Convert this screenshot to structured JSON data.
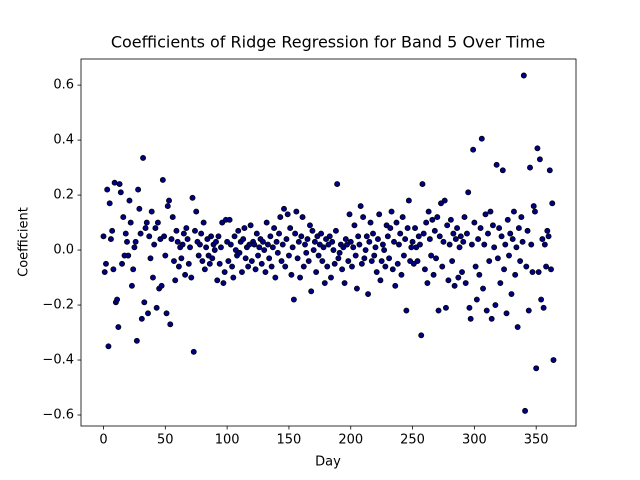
{
  "chart_data": {
    "type": "scatter",
    "title": "Coefficients of Ridge Regression for Band 5 Over Time",
    "x_label": "Day",
    "y_label": "Coefficient",
    "xlim": [
      -18.2,
      382.2
    ],
    "ylim": [
      -0.64,
      0.695
    ],
    "xticks": [
      0,
      50,
      100,
      150,
      200,
      250,
      300,
      350
    ],
    "yticks": [
      {
        "value": -0.6,
        "label": "−0.6"
      },
      {
        "value": -0.4,
        "label": "−0.4"
      },
      {
        "value": -0.2,
        "label": "−0.2"
      },
      {
        "value": 0,
        "label": "0.0"
      },
      0.2,
      0.4,
      0.6
    ],
    "color": "navy",
    "x": [
      0,
      1,
      2,
      3,
      4,
      5,
      6,
      7,
      8,
      9,
      10,
      11,
      12,
      13,
      14,
      15,
      16,
      17,
      18,
      19,
      20,
      21,
      22,
      23,
      24,
      25,
      26,
      27,
      28,
      29,
      30,
      31,
      32,
      33,
      34,
      35,
      36,
      37,
      38,
      39,
      40,
      41,
      42,
      43,
      44,
      45,
      46,
      47,
      48,
      49,
      50,
      51,
      52,
      53,
      54,
      55,
      56,
      57,
      58,
      59,
      60,
      61,
      62,
      63,
      64,
      65,
      66,
      67,
      68,
      69,
      70,
      71,
      72,
      73,
      74,
      75,
      76,
      77,
      78,
      79,
      80,
      81,
      82,
      83,
      84,
      85,
      86,
      87,
      88,
      89,
      90,
      91,
      92,
      93,
      94,
      95,
      96,
      97,
      98,
      99,
      100,
      101,
      102,
      103,
      104,
      105,
      106,
      107,
      108,
      109,
      110,
      111,
      112,
      113,
      114,
      115,
      116,
      117,
      118,
      119,
      120,
      121,
      122,
      123,
      124,
      125,
      126,
      127,
      128,
      129,
      130,
      131,
      132,
      133,
      134,
      135,
      136,
      137,
      138,
      139,
      140,
      141,
      142,
      143,
      144,
      145,
      146,
      147,
      148,
      149,
      150,
      151,
      152,
      153,
      154,
      155,
      156,
      157,
      158,
      159,
      160,
      161,
      162,
      163,
      164,
      165,
      166,
      167,
      168,
      169,
      170,
      171,
      172,
      173,
      174,
      175,
      176,
      177,
      178,
      179,
      180,
      181,
      182,
      183,
      184,
      185,
      186,
      187,
      188,
      189,
      190,
      191,
      192,
      193,
      194,
      195,
      196,
      197,
      198,
      199,
      200,
      201,
      202,
      203,
      204,
      205,
      206,
      207,
      208,
      209,
      210,
      211,
      212,
      213,
      214,
      215,
      216,
      217,
      218,
      219,
      220,
      221,
      222,
      223,
      224,
      225,
      226,
      227,
      228,
      229,
      230,
      231,
      232,
      233,
      234,
      235,
      236,
      237,
      238,
      239,
      240,
      241,
      242,
      243,
      244,
      245,
      246,
      247,
      248,
      249,
      250,
      251,
      252,
      253,
      254,
      255,
      256,
      257,
      258,
      259,
      260,
      261,
      262,
      263,
      264,
      265,
      266,
      267,
      268,
      269,
      270,
      271,
      272,
      273,
      274,
      275,
      276,
      277,
      278,
      279,
      280,
      281,
      282,
      283,
      284,
      285,
      286,
      287,
      288,
      289,
      290,
      291,
      292,
      293,
      294,
      295,
      296,
      297,
      298,
      299,
      300,
      301,
      302,
      303,
      304,
      305,
      306,
      307,
      308,
      309,
      310,
      311,
      312,
      313,
      314,
      315,
      316,
      317,
      318,
      319,
      320,
      321,
      322,
      323,
      324,
      325,
      326,
      327,
      328,
      329,
      330,
      331,
      332,
      333,
      334,
      335,
      336,
      337,
      338,
      339,
      340,
      341,
      342,
      343,
      344,
      345,
      346,
      347,
      348,
      349,
      350,
      351,
      352,
      353,
      354,
      355,
      356,
      357,
      358,
      359,
      360,
      361,
      362,
      363,
      364
    ],
    "values": [
      0.05,
      -0.08,
      -0.05,
      0.22,
      -0.35,
      0.17,
      0.04,
      0.07,
      -0.07,
      0.245,
      -0.19,
      -0.18,
      -0.28,
      0.24,
      0.21,
      -0.05,
      0.12,
      -0.02,
      0.06,
      0.03,
      -0.02,
      0.18,
      0.1,
      -0.13,
      -0.07,
      0.01,
      0.03,
      -0.33,
      0.22,
      0.15,
      0.06,
      -0.25,
      0.335,
      -0.19,
      0.08,
      0.1,
      -0.23,
      0.05,
      -0.03,
      0.14,
      -0.1,
      0.02,
      0.08,
      -0.21,
      0.1,
      -0.14,
      0.04,
      -0.13,
      0.255,
      0.05,
      -0.02,
      -0.23,
      0.16,
      0.18,
      -0.27,
      0.04,
      0.12,
      -0.04,
      -0.11,
      0.07,
      0.03,
      -0.06,
      0.01,
      -0.03,
      0.02,
      0.06,
      -0.09,
      0.08,
      0.04,
      -0.05,
      0.01,
      -0.1,
      0.19,
      -0.37,
      0.07,
      0.14,
      0.03,
      -0.02,
      0.02,
      0.06,
      -0.04,
      0.1,
      -0.07,
      0.01,
      0.04,
      -0.02,
      -0.05,
      0.05,
      -0.03,
      0.02,
      0.0,
      0.03,
      -0.11,
      0.05,
      -0.05,
      0.01,
      0.1,
      -0.12,
      -0.08,
      0.11,
      0.03,
      -0.04,
      0.11,
      0.02,
      -0.06,
      -0.1,
      0.05,
      0.0,
      -0.02,
      0.07,
      -0.01,
      0.03,
      -0.08,
      0.04,
      0.08,
      -0.03,
      0.01,
      -0.06,
      0.02,
      0.09,
      -0.04,
      0.03,
      0.02,
      -0.07,
      0.06,
      -0.02,
      0.01,
      0.04,
      -0.05,
      0.03,
      0.0,
      -0.08,
      0.1,
      0.02,
      -0.03,
      0.05,
      -0.06,
      0.01,
      0.08,
      -0.1,
      0.03,
      -0.01,
      0.06,
      0.12,
      -0.04,
      0.02,
      0.15,
      -0.06,
      0.04,
      0.13,
      -0.02,
      0.08,
      -0.09,
      0.01,
      -0.18,
      0.06,
      0.14,
      -0.03,
      0.03,
      -0.1,
      0.05,
      0.12,
      -0.06,
      0.02,
      -0.01,
      0.04,
      -0.04,
      0.09,
      -0.15,
      0.07,
      0.0,
      0.03,
      -0.08,
      0.05,
      -0.02,
      0.02,
      0.06,
      -0.04,
      0.01,
      -0.12,
      0.04,
      -0.06,
      0.02,
      0.05,
      -0.1,
      0.03,
      0.0,
      -0.05,
      0.07,
      0.24,
      -0.03,
      -0.01,
      0.02,
      -0.07,
      0.01,
      -0.12,
      0.04,
      0.02,
      -0.04,
      0.13,
      0.03,
      -0.06,
      0.01,
      0.09,
      -0.02,
      -0.14,
      0.05,
      0.02,
      0.16,
      -0.05,
      0.12,
      -0.03,
      0.0,
      0.05,
      -0.16,
      0.03,
      0.1,
      -0.04,
      0.06,
      -0.02,
      0.01,
      -0.08,
      0.04,
      0.13,
      -0.11,
      -0.04,
      0.02,
      0.0,
      -0.06,
      0.09,
      0.05,
      -0.03,
      0.08,
      0.14,
      -0.07,
      0.03,
      -0.13,
      0.1,
      -0.05,
      0.02,
      0.06,
      -0.09,
      0.12,
      -0.02,
      0.04,
      -0.22,
      0.08,
      0.18,
      -0.04,
      0.01,
      0.03,
      -0.05,
      0.08,
      0.01,
      -0.04,
      0.05,
      0.02,
      -0.31,
      0.24,
      0.06,
      -0.07,
      0.1,
      -0.12,
      0.14,
      0.04,
      -0.02,
      0.11,
      -0.09,
      0.07,
      -0.03,
      0.12,
      -0.22,
      0.05,
      0.17,
      -0.06,
      0.03,
      0.18,
      -0.21,
      0.09,
      -0.11,
      0.02,
      0.11,
      -0.04,
      0.06,
      -0.13,
      0.04,
      0.08,
      -0.1,
      0.01,
      0.05,
      -0.08,
      0.03,
      0.12,
      -0.12,
      0.06,
      0.21,
      -0.21,
      -0.25,
      0.02,
      0.365,
      0.1,
      -0.06,
      -0.18,
      0.04,
      -0.09,
      0.08,
      0.405,
      -0.14,
      0.02,
      0.13,
      -0.22,
      0.06,
      -0.04,
      0.14,
      -0.25,
      0.09,
      0.01,
      -0.2,
      0.31,
      -0.03,
      0.08,
      -0.12,
      0.05,
      0.29,
      -0.07,
      0.02,
      -0.23,
      0.11,
      -0.02,
      0.06,
      -0.16,
      0.04,
      0.14,
      -0.09,
      0.01,
      -0.28,
      0.08,
      -0.04,
      0.12,
      0.03,
      0.635,
      -0.585,
      -0.06,
      0.07,
      -0.22,
      0.3,
      0.02,
      -0.08,
      0.16,
      0.14,
      -0.43,
      0.37,
      -0.08,
      0.33,
      -0.18,
      0.04,
      -0.21,
      0.02,
      -0.06,
      0.07,
      0.05,
      0.29,
      -0.07,
      0.17,
      -0.4
    ]
  }
}
